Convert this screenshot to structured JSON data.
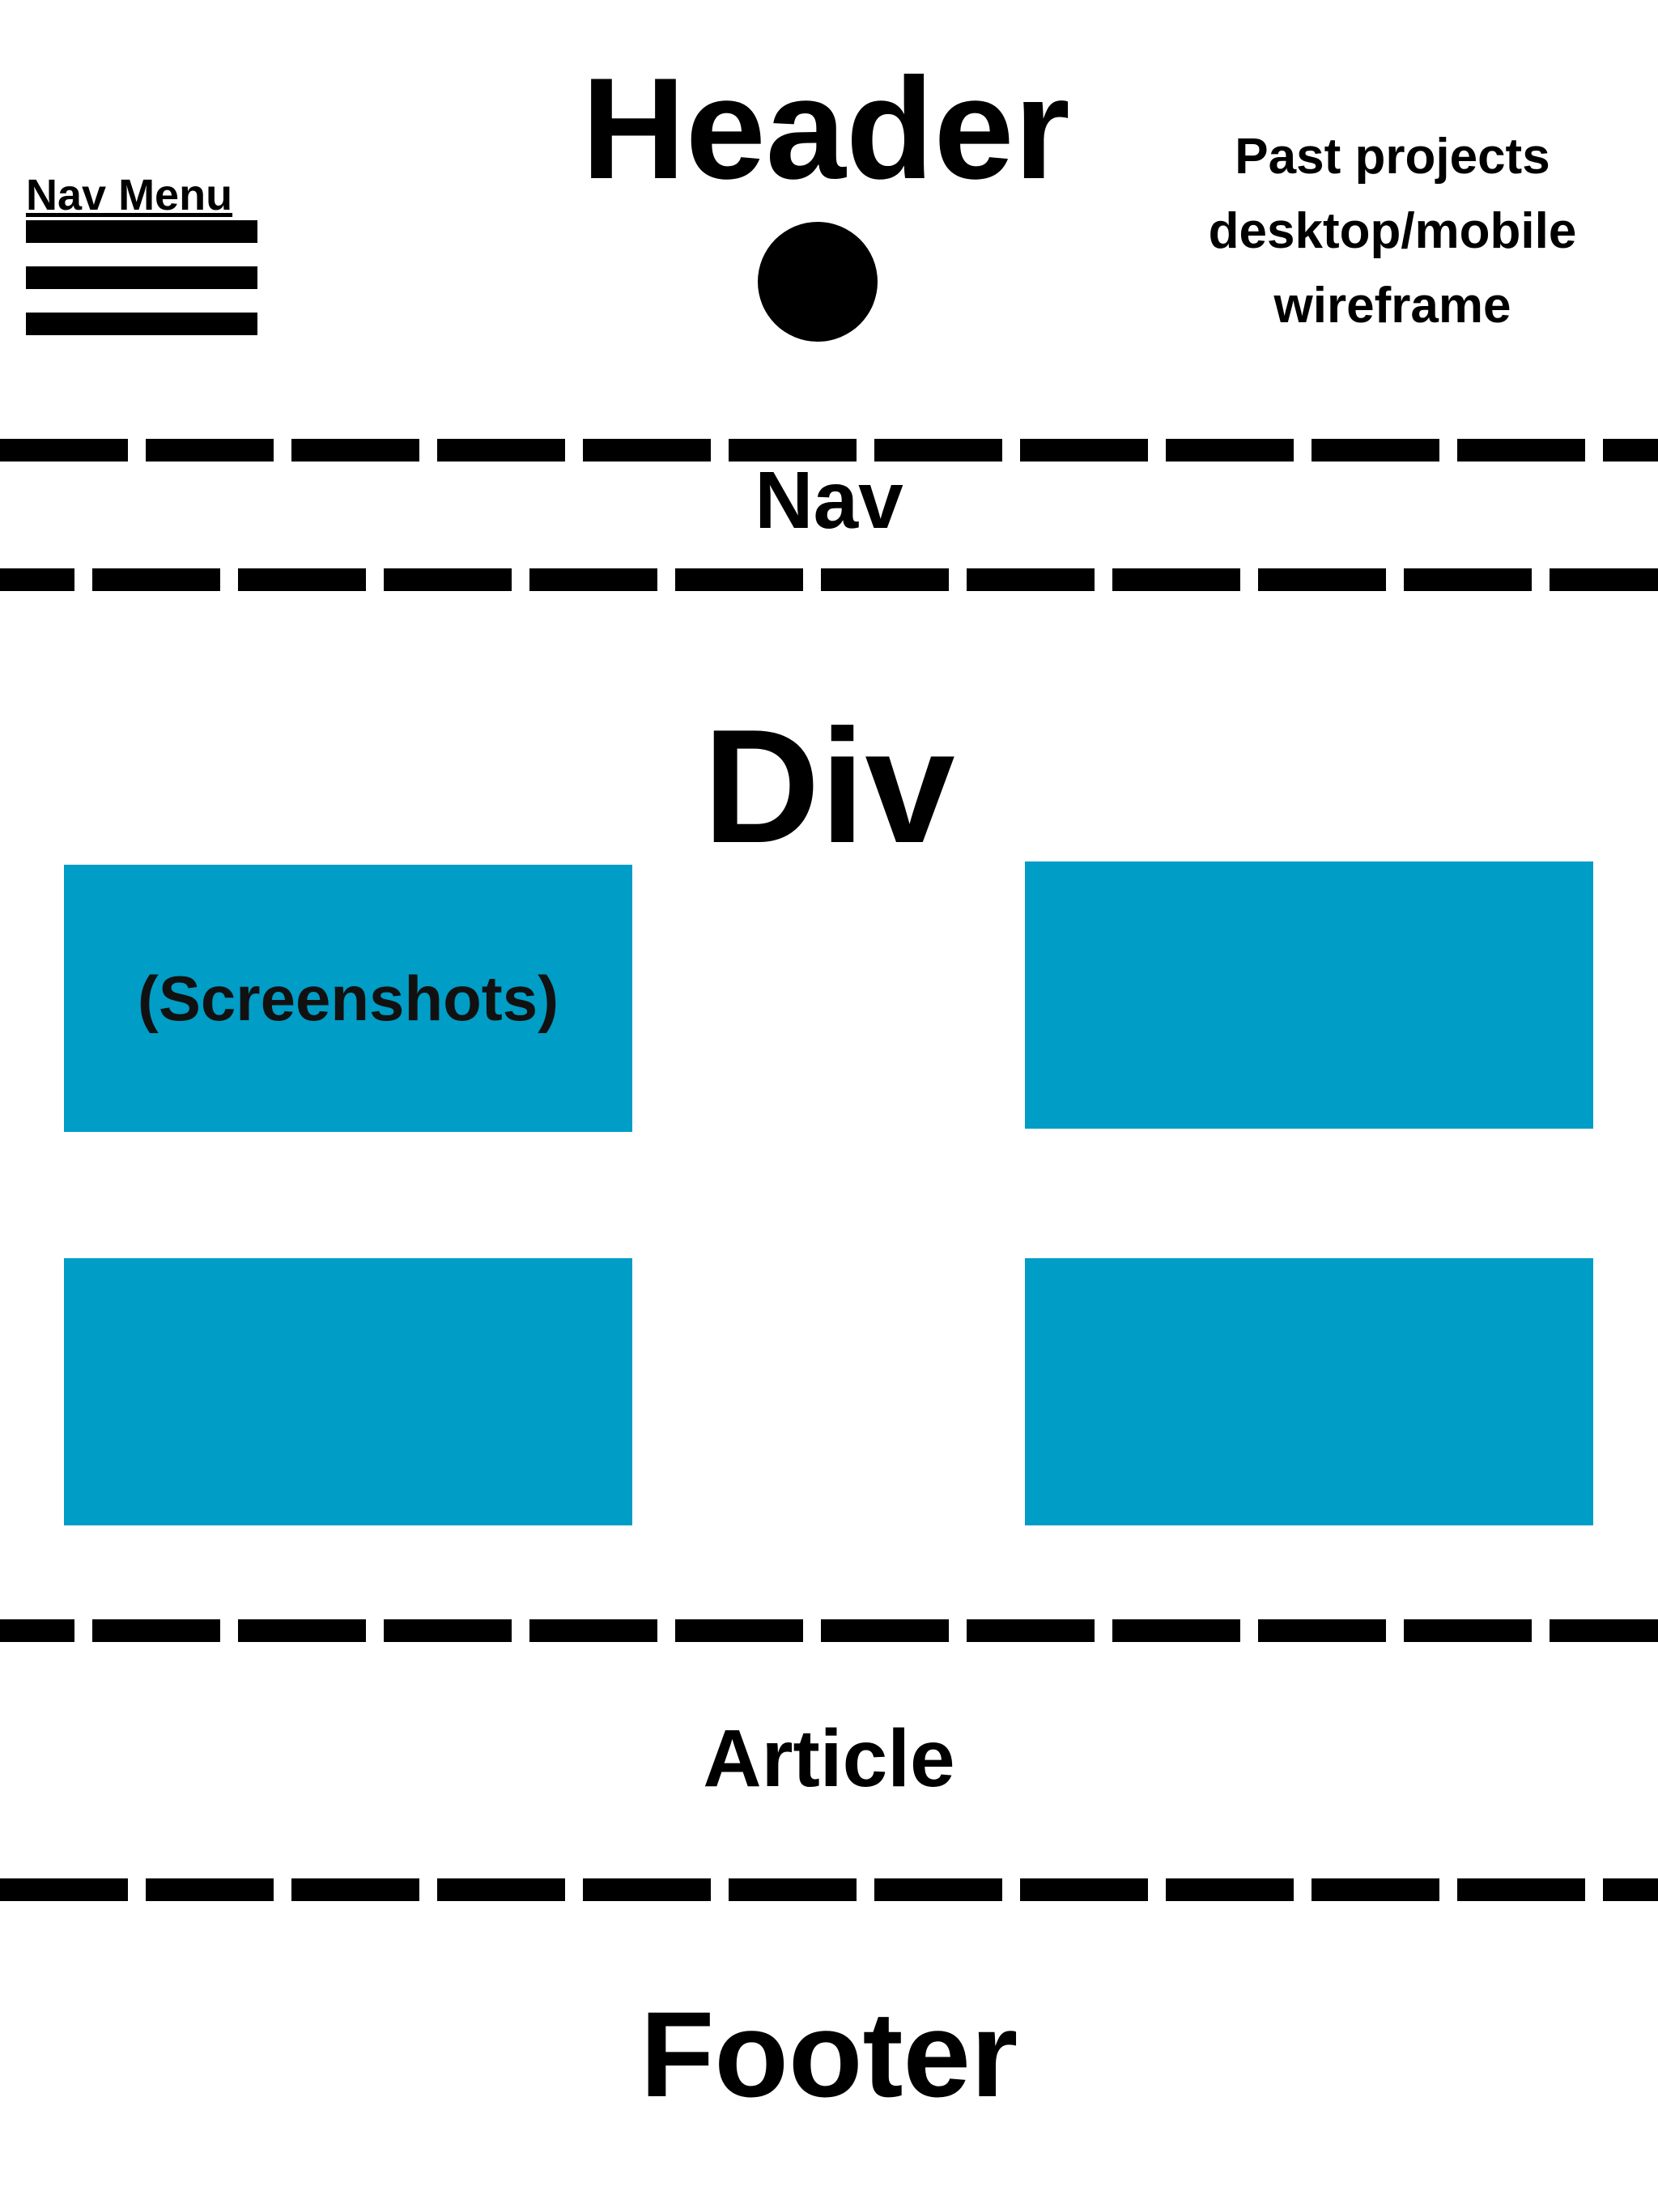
{
  "header": {
    "nav_menu_label": "Nav Menu",
    "title": "Header",
    "subtitle_lines": [
      "Past projects",
      "desktop/mobile",
      "wireframe"
    ]
  },
  "sections": {
    "nav": "Nav",
    "div": "Div",
    "article": "Article",
    "footer": "Footer"
  },
  "screenshots": {
    "label": "(Screenshots)",
    "count": 4,
    "color": "#009dc6"
  },
  "icons": [
    "hamburger-menu-icon",
    "circle-logo-icon"
  ]
}
